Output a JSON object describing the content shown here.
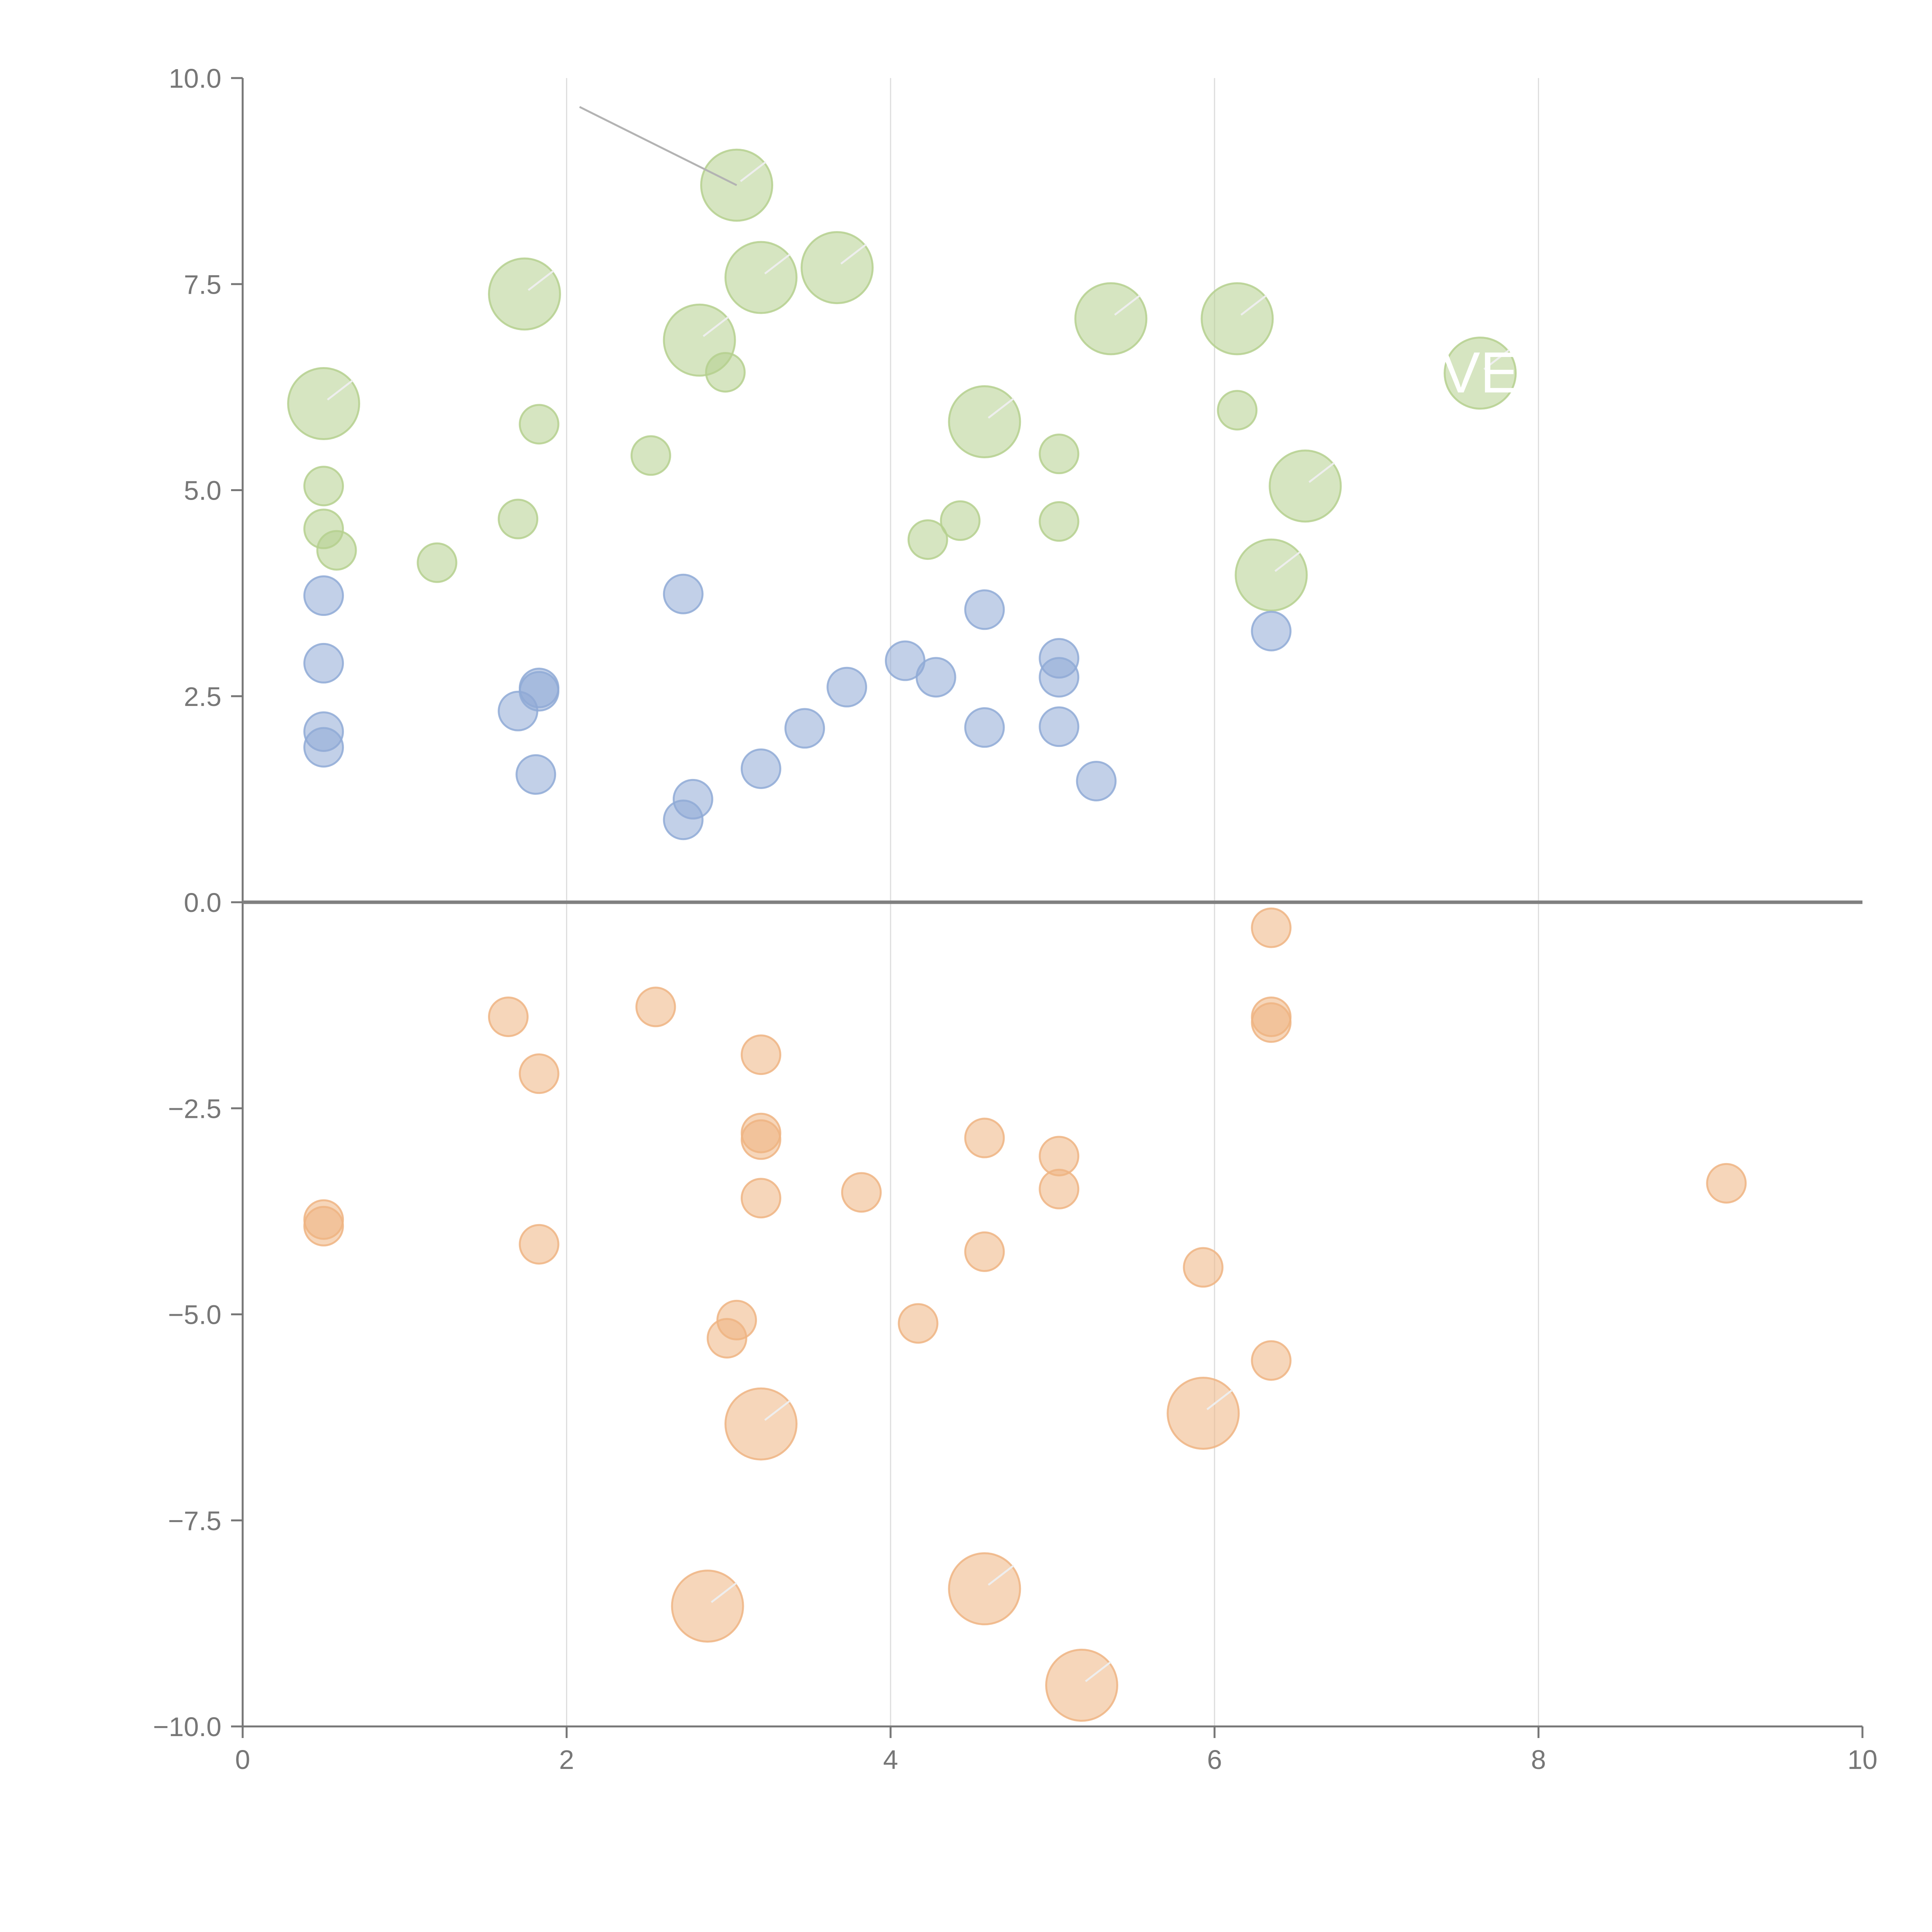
{
  "chart_data": {
    "type": "scatter",
    "title": "",
    "xlabel": "",
    "ylabel": "",
    "xlim": [
      0,
      10
    ],
    "ylim": [
      -10,
      10
    ],
    "x_ticks": [
      0,
      2,
      4,
      6,
      8,
      10
    ],
    "y_ticks": [
      -10,
      -7.5,
      -5,
      -2.5,
      0,
      2.5,
      5,
      7.5,
      10
    ],
    "x_tick_labels": [
      "0",
      "2",
      "4",
      "6",
      "8",
      "10"
    ],
    "y_tick_labels": [
      "−10.0",
      "−7.5",
      "−5.0",
      "−2.5",
      "0.0",
      "2.5",
      "5.0",
      "7.5",
      "10.0"
    ],
    "grid": {
      "x": true,
      "y": false
    },
    "zero_line": 0,
    "series": [
      {
        "name": "green",
        "color": "#b5d08e",
        "points": [
          {
            "x": 3.05,
            "y": 8.7,
            "size": "large"
          },
          {
            "x": 1.74,
            "y": 7.38,
            "size": "large"
          },
          {
            "x": 3.2,
            "y": 7.58,
            "size": "large"
          },
          {
            "x": 3.67,
            "y": 7.7,
            "size": "large"
          },
          {
            "x": 2.82,
            "y": 6.82,
            "size": "large"
          },
          {
            "x": 5.36,
            "y": 7.08,
            "size": "large"
          },
          {
            "x": 6.14,
            "y": 7.08,
            "size": "large"
          },
          {
            "x": 0.5,
            "y": 6.05,
            "size": "large"
          },
          {
            "x": 4.58,
            "y": 5.83,
            "size": "large"
          },
          {
            "x": 7.64,
            "y": 6.42,
            "size": "large"
          },
          {
            "x": 6.56,
            "y": 5.05,
            "size": "large"
          },
          {
            "x": 6.35,
            "y": 3.97,
            "size": "large"
          },
          {
            "x": 2.98,
            "y": 6.43,
            "size": "small"
          },
          {
            "x": 1.83,
            "y": 5.8,
            "size": "small"
          },
          {
            "x": 2.52,
            "y": 5.42,
            "size": "small"
          },
          {
            "x": 0.5,
            "y": 5.05,
            "size": "small"
          },
          {
            "x": 0.5,
            "y": 4.53,
            "size": "small"
          },
          {
            "x": 0.58,
            "y": 4.27,
            "size": "small"
          },
          {
            "x": 1.2,
            "y": 4.12,
            "size": "small"
          },
          {
            "x": 1.7,
            "y": 4.65,
            "size": "small"
          },
          {
            "x": 4.23,
            "y": 4.4,
            "size": "small"
          },
          {
            "x": 4.43,
            "y": 4.63,
            "size": "small"
          },
          {
            "x": 5.04,
            "y": 5.44,
            "size": "small"
          },
          {
            "x": 5.04,
            "y": 4.62,
            "size": "small"
          },
          {
            "x": 6.14,
            "y": 5.97,
            "size": "small"
          }
        ]
      },
      {
        "name": "blue",
        "color": "#8faad6",
        "points": [
          {
            "x": 0.5,
            "y": 3.72,
            "size": "small"
          },
          {
            "x": 0.5,
            "y": 2.9,
            "size": "small"
          },
          {
            "x": 0.5,
            "y": 2.07,
            "size": "small"
          },
          {
            "x": 0.5,
            "y": 1.88,
            "size": "small"
          },
          {
            "x": 1.7,
            "y": 2.32,
            "size": "small"
          },
          {
            "x": 1.83,
            "y": 2.6,
            "size": "small"
          },
          {
            "x": 1.83,
            "y": 2.56,
            "size": "small"
          },
          {
            "x": 1.81,
            "y": 1.55,
            "size": "small"
          },
          {
            "x": 2.72,
            "y": 3.74,
            "size": "small"
          },
          {
            "x": 2.78,
            "y": 1.25,
            "size": "small"
          },
          {
            "x": 2.72,
            "y": 1.0,
            "size": "small"
          },
          {
            "x": 3.2,
            "y": 1.62,
            "size": "small"
          },
          {
            "x": 3.47,
            "y": 2.11,
            "size": "small"
          },
          {
            "x": 3.73,
            "y": 2.61,
            "size": "small"
          },
          {
            "x": 4.09,
            "y": 2.93,
            "size": "small"
          },
          {
            "x": 4.28,
            "y": 2.73,
            "size": "small"
          },
          {
            "x": 4.58,
            "y": 3.55,
            "size": "small"
          },
          {
            "x": 4.58,
            "y": 2.12,
            "size": "small"
          },
          {
            "x": 5.04,
            "y": 2.96,
            "size": "small"
          },
          {
            "x": 5.04,
            "y": 2.73,
            "size": "small"
          },
          {
            "x": 5.04,
            "y": 2.13,
            "size": "small"
          },
          {
            "x": 5.27,
            "y": 1.47,
            "size": "small"
          },
          {
            "x": 6.35,
            "y": 3.29,
            "size": "small"
          }
        ]
      },
      {
        "name": "orange",
        "color": "#eeb482",
        "points": [
          {
            "x": 6.35,
            "y": -0.31,
            "size": "small"
          },
          {
            "x": 6.35,
            "y": -1.39,
            "size": "small"
          },
          {
            "x": 6.35,
            "y": -1.46,
            "size": "small"
          },
          {
            "x": 1.64,
            "y": -1.39,
            "size": "small"
          },
          {
            "x": 2.55,
            "y": -1.27,
            "size": "small"
          },
          {
            "x": 3.2,
            "y": -1.85,
            "size": "small"
          },
          {
            "x": 1.83,
            "y": -2.08,
            "size": "small"
          },
          {
            "x": 3.2,
            "y": -2.8,
            "size": "small"
          },
          {
            "x": 3.2,
            "y": -2.88,
            "size": "small"
          },
          {
            "x": 4.58,
            "y": -2.86,
            "size": "small"
          },
          {
            "x": 5.04,
            "y": -3.08,
            "size": "small"
          },
          {
            "x": 5.04,
            "y": -3.48,
            "size": "small"
          },
          {
            "x": 3.2,
            "y": -3.59,
            "size": "small"
          },
          {
            "x": 3.82,
            "y": -3.52,
            "size": "small"
          },
          {
            "x": 9.16,
            "y": -3.41,
            "size": "small"
          },
          {
            "x": 0.5,
            "y": -3.85,
            "size": "small"
          },
          {
            "x": 0.5,
            "y": -3.93,
            "size": "small"
          },
          {
            "x": 1.83,
            "y": -4.15,
            "size": "small"
          },
          {
            "x": 4.58,
            "y": -4.24,
            "size": "small"
          },
          {
            "x": 5.93,
            "y": -4.43,
            "size": "small"
          },
          {
            "x": 3.05,
            "y": -5.07,
            "size": "small"
          },
          {
            "x": 2.99,
            "y": -5.29,
            "size": "small"
          },
          {
            "x": 4.17,
            "y": -5.11,
            "size": "small"
          },
          {
            "x": 6.35,
            "y": -5.56,
            "size": "small"
          },
          {
            "x": 3.2,
            "y": -6.33,
            "size": "large"
          },
          {
            "x": 5.93,
            "y": -6.2,
            "size": "large"
          },
          {
            "x": 2.87,
            "y": -8.54,
            "size": "large"
          },
          {
            "x": 4.58,
            "y": -8.33,
            "size": "large"
          },
          {
            "x": 5.18,
            "y": -9.5,
            "size": "large"
          }
        ]
      }
    ],
    "annotations": [
      {
        "text": "VE",
        "x": 7.64,
        "y": 6.42
      }
    ]
  }
}
